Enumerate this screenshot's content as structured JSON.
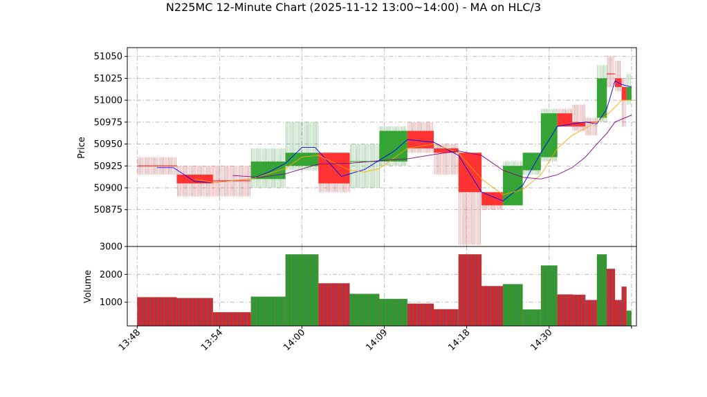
{
  "chart_data": {
    "type": "candlestick",
    "title": "N225MC 12-Minute Chart (2025-11-12 13:00~14:00) - MA on HLC/3",
    "ylabel_price": "Price",
    "ylabel_volume": "Volume",
    "xlim": [
      -6,
      303
    ],
    "price_ylim": [
      50833,
      51060
    ],
    "volume_ylim": [
      150,
      3000
    ],
    "price_ticks": [
      50875,
      50900,
      50925,
      50950,
      50975,
      51000,
      51025,
      51050
    ],
    "volume_ticks": [
      1000,
      2000,
      3000
    ],
    "x_ticks": [
      {
        "pos": 0,
        "label": "13:48"
      },
      {
        "pos": 50,
        "label": "13:54"
      },
      {
        "pos": 100,
        "label": "14:00"
      },
      {
        "pos": 150,
        "label": "14:09"
      },
      {
        "pos": 200,
        "label": "14:18"
      },
      {
        "pos": 250,
        "label": "14:30"
      },
      {
        "pos": 300,
        "label": ""
      }
    ],
    "grid": true,
    "colors": {
      "up": "#2ca02c",
      "down": "#ff2a2a",
      "vol_a": "#1f77b4",
      "vol_b": "#d62728",
      "ma_short": "#0000ff",
      "ma_mid": "#ffa500",
      "ma_long": "#800080"
    },
    "bars": [
      {
        "x0": 0,
        "x1": 24,
        "open": 50925,
        "high": 50935,
        "low": 50915,
        "close": 50925,
        "volume": 1180,
        "dir": "flat"
      },
      {
        "x0": 24,
        "x1": 46,
        "open": 50915,
        "high": 50925,
        "low": 50890,
        "close": 50905,
        "volume": 1150,
        "dir": "down"
      },
      {
        "x0": 46,
        "x1": 69,
        "open": 50910,
        "high": 50925,
        "low": 50890,
        "close": 50908,
        "volume": 640,
        "dir": "flat"
      },
      {
        "x0": 69,
        "x1": 90,
        "open": 50910,
        "high": 50945,
        "low": 50900,
        "close": 50930,
        "volume": 1200,
        "dir": "up"
      },
      {
        "x0": 90,
        "x1": 110,
        "open": 50925,
        "high": 50975,
        "low": 50920,
        "close": 50940,
        "volume": 2720,
        "dir": "up"
      },
      {
        "x0": 110,
        "x1": 129,
        "open": 50940,
        "high": 50940,
        "low": 50895,
        "close": 50905,
        "volume": 1680,
        "dir": "down"
      },
      {
        "x0": 129,
        "x1": 147,
        "open": 50930,
        "high": 50950,
        "low": 50900,
        "close": 50930,
        "volume": 1300,
        "dir": "up"
      },
      {
        "x0": 147,
        "x1": 164,
        "open": 50930,
        "high": 50970,
        "low": 50925,
        "close": 50965,
        "volume": 1120,
        "dir": "up"
      },
      {
        "x0": 164,
        "x1": 180,
        "open": 50965,
        "high": 50975,
        "low": 50940,
        "close": 50945,
        "volume": 950,
        "dir": "down"
      },
      {
        "x0": 180,
        "x1": 195,
        "open": 50945,
        "high": 50950,
        "low": 50915,
        "close": 50940,
        "volume": 750,
        "dir": "down"
      },
      {
        "x0": 195,
        "x1": 209,
        "open": 50940,
        "high": 50940,
        "low": 50835,
        "close": 50895,
        "volume": 2720,
        "dir": "down"
      },
      {
        "x0": 209,
        "x1": 222,
        "open": 50895,
        "high": 50895,
        "low": 50875,
        "close": 50880,
        "volume": 1580,
        "dir": "down"
      },
      {
        "x0": 222,
        "x1": 234,
        "open": 50880,
        "high": 50930,
        "low": 50880,
        "close": 50925,
        "volume": 1650,
        "dir": "up"
      },
      {
        "x0": 234,
        "x1": 245,
        "open": 50920,
        "high": 50940,
        "low": 50915,
        "close": 50940,
        "volume": 740,
        "dir": "up"
      },
      {
        "x0": 245,
        "x1": 255,
        "open": 50935,
        "high": 50990,
        "low": 50930,
        "close": 50985,
        "volume": 2320,
        "dir": "up"
      },
      {
        "x0": 255,
        "x1": 264,
        "open": 50985,
        "high": 50990,
        "low": 50970,
        "close": 50970,
        "volume": 1280,
        "dir": "down"
      },
      {
        "x0": 264,
        "x1": 272,
        "open": 50975,
        "high": 50995,
        "low": 50965,
        "close": 50970,
        "volume": 1270,
        "dir": "down"
      },
      {
        "x0": 272,
        "x1": 279,
        "open": 50975,
        "high": 50980,
        "low": 50960,
        "close": 50975,
        "volume": 1080,
        "dir": "down"
      },
      {
        "x0": 279,
        "x1": 285,
        "open": 50980,
        "high": 51040,
        "low": 50975,
        "close": 51025,
        "volume": 2720,
        "dir": "up"
      },
      {
        "x0": 285,
        "x1": 290,
        "open": 51030,
        "high": 51050,
        "low": 51015,
        "close": 51030,
        "volume": 2200,
        "dir": "down"
      },
      {
        "x0": 290,
        "x1": 294,
        "open": 51025,
        "high": 51045,
        "low": 51010,
        "close": 51015,
        "volume": 1080,
        "dir": "down"
      },
      {
        "x0": 294,
        "x1": 297,
        "open": 51015,
        "high": 51025,
        "low": 50970,
        "close": 51000,
        "volume": 1560,
        "dir": "down"
      },
      {
        "x0": 297,
        "x1": 300,
        "open": 51000,
        "high": 51030,
        "low": 50995,
        "close": 51015,
        "volume": 700,
        "dir": "up"
      }
    ],
    "ma_series": [
      {
        "key": "ma_short",
        "points": [
          [
            12,
            50923
          ],
          [
            22,
            50923
          ],
          [
            35,
            50907
          ],
          [
            46,
            50906
          ],
          [
            69,
            50910
          ],
          [
            80,
            50918
          ],
          [
            90,
            50928
          ],
          [
            100,
            50946
          ],
          [
            108,
            50946
          ],
          [
            124,
            50913
          ],
          [
            138,
            50921
          ],
          [
            156,
            50942
          ],
          [
            164,
            50955
          ],
          [
            180,
            50952
          ],
          [
            195,
            50937
          ],
          [
            209,
            50895
          ],
          [
            222,
            50885
          ],
          [
            234,
            50903
          ],
          [
            245,
            50940
          ],
          [
            255,
            50970
          ],
          [
            264,
            50973
          ],
          [
            272,
            50975
          ],
          [
            279,
            50973
          ],
          [
            285,
            50990
          ],
          [
            290,
            51022
          ],
          [
            294,
            51018
          ],
          [
            300,
            51015
          ]
        ]
      },
      {
        "key": "ma_mid",
        "points": [
          [
            35,
            50910
          ],
          [
            46,
            50906
          ],
          [
            69,
            50910
          ],
          [
            90,
            50922
          ],
          [
            100,
            50935
          ],
          [
            110,
            50937
          ],
          [
            129,
            50920
          ],
          [
            138,
            50918
          ],
          [
            147,
            50922
          ],
          [
            164,
            50945
          ],
          [
            180,
            50950
          ],
          [
            195,
            50940
          ],
          [
            209,
            50910
          ],
          [
            222,
            50892
          ],
          [
            234,
            50898
          ],
          [
            245,
            50915
          ],
          [
            255,
            50945
          ],
          [
            264,
            50960
          ],
          [
            279,
            50975
          ],
          [
            285,
            50983
          ],
          [
            290,
            50992
          ],
          [
            294,
            51000
          ],
          [
            300,
            51000
          ]
        ]
      },
      {
        "key": "ma_long",
        "points": [
          [
            58,
            50914
          ],
          [
            75,
            50912
          ],
          [
            90,
            50916
          ],
          [
            110,
            50927
          ],
          [
            129,
            50928
          ],
          [
            147,
            50931
          ],
          [
            164,
            50933
          ],
          [
            180,
            50938
          ],
          [
            195,
            50942
          ],
          [
            209,
            50937
          ],
          [
            222,
            50920
          ],
          [
            234,
            50912
          ],
          [
            245,
            50910
          ],
          [
            255,
            50915
          ],
          [
            264,
            50923
          ],
          [
            272,
            50935
          ],
          [
            279,
            50950
          ],
          [
            285,
            50962
          ],
          [
            290,
            50975
          ],
          [
            300,
            50983
          ]
        ]
      }
    ]
  }
}
